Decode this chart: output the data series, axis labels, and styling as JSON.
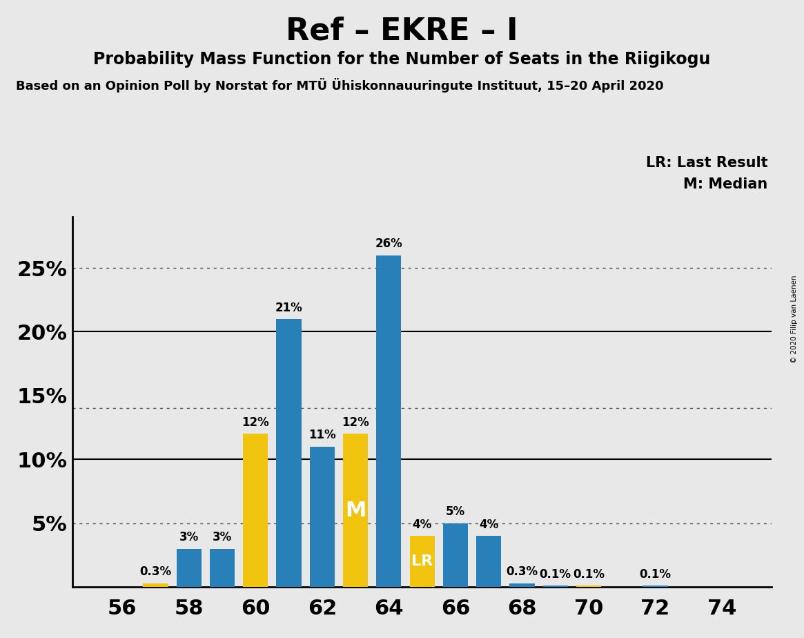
{
  "title": "Ref – EKRE – I",
  "subtitle": "Probability Mass Function for the Number of Seats in the Riigikogu",
  "source_line": "Based on an Opinion Poll by Norstat for MTÜ Ühiskonnauuringute Instituut, 15–20 April 2020",
  "copyright": "© 2020 Filip van Laenen",
  "seats": [
    56,
    57,
    58,
    59,
    60,
    61,
    62,
    63,
    64,
    65,
    66,
    67,
    68,
    69,
    70,
    71,
    72,
    73,
    74
  ],
  "pmf_values": [
    0.0,
    0.3,
    3.0,
    3.0,
    12.0,
    21.0,
    11.0,
    12.0,
    26.0,
    4.0,
    5.0,
    4.0,
    0.3,
    0.1,
    0.1,
    0.0,
    0.1,
    0.0,
    0.0
  ],
  "yellow_seats": [
    57,
    60,
    63,
    65,
    70
  ],
  "median_seat": 63,
  "lr_seat": 65,
  "blue_color": "#2980b9",
  "yellow_color": "#f1c40f",
  "background_color": "#e8e8e8",
  "bar_width": 0.75,
  "ylim_max": 29,
  "dotted_lines": [
    5.0,
    14.0,
    25.0
  ],
  "solid_lines": [
    10.0,
    20.0
  ],
  "xlabel_seats": [
    56,
    58,
    60,
    62,
    64,
    66,
    68,
    70,
    72,
    74
  ],
  "legend_lr": "LR: Last Result",
  "legend_m": "M: Median"
}
